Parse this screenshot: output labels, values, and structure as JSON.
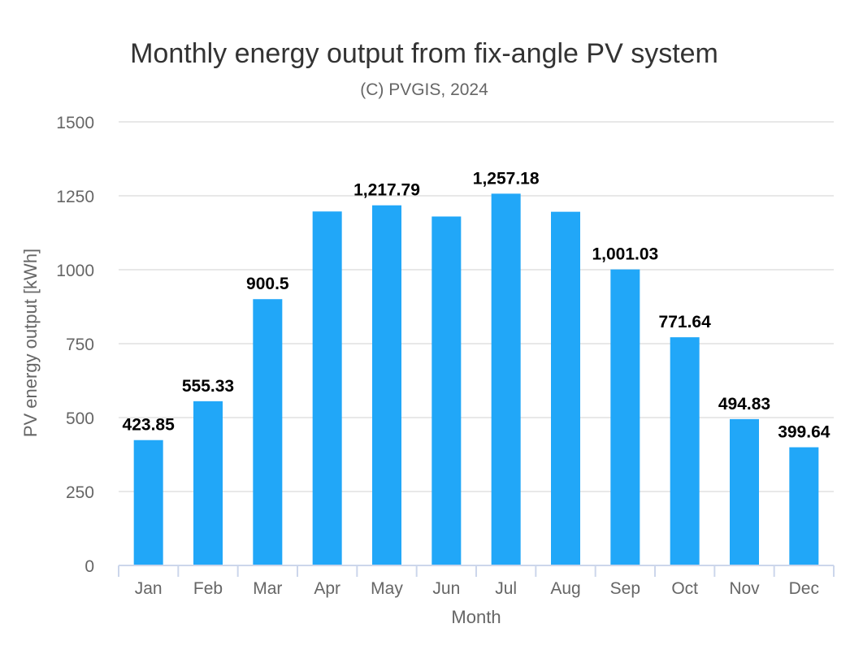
{
  "chart_data": {
    "type": "bar",
    "title": "Monthly energy output from fix-angle PV system",
    "subtitle": "(C) PVGIS, 2024",
    "xlabel": "Month",
    "ylabel": "PV energy output [kWh]",
    "ylim": [
      0,
      1500
    ],
    "yticks": [
      0,
      250,
      500,
      750,
      1000,
      1250,
      1500
    ],
    "grid": true,
    "categories": [
      "Jan",
      "Feb",
      "Mar",
      "Apr",
      "May",
      "Jun",
      "Jul",
      "Aug",
      "Sep",
      "Oct",
      "Nov",
      "Dec"
    ],
    "series": [
      {
        "name": "PV energy output",
        "values": [
          423.85,
          555.33,
          900.5,
          1197,
          1217.79,
          1180,
          1257.18,
          1196,
          1001.03,
          771.64,
          494.83,
          399.64
        ],
        "data_labels": [
          "423.85",
          "555.33",
          "900.5",
          null,
          "1,217.79",
          null,
          "1,257.18",
          null,
          "1,001.03",
          "771.64",
          "494.83",
          "399.64"
        ]
      }
    ],
    "colors": {
      "bar": "#21a7f8",
      "grid": "#e0e0e0",
      "axis": "#ccd6eb",
      "title": "#333333",
      "tick": "#666666",
      "label": "#000000"
    }
  }
}
